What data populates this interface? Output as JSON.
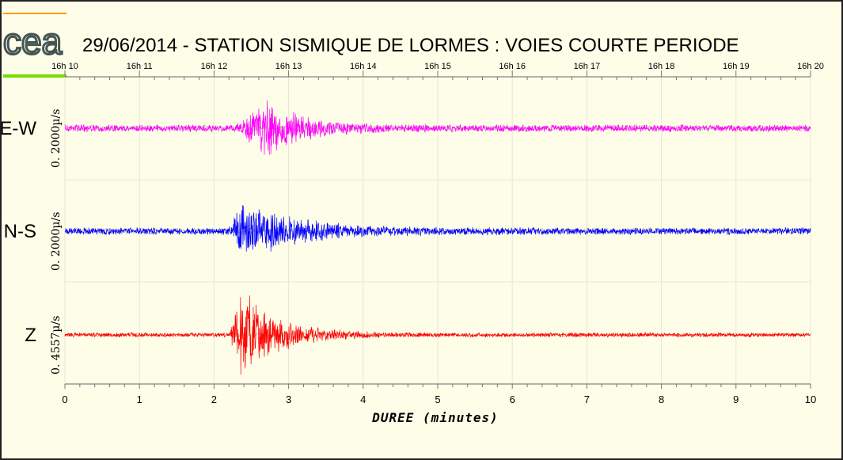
{
  "chart_data": {
    "type": "line",
    "title": "29/06/2014  -  STATION SISMIQUE DE LORMES : VOIES COURTE PERIODE",
    "xlabel": "DUREE (minutes)",
    "xlim": [
      0,
      10
    ],
    "x_ticks": [
      "0",
      "1",
      "2",
      "3",
      "4",
      "5",
      "6",
      "7",
      "8",
      "9",
      "10"
    ],
    "time_ticks": [
      "16h 10",
      "16h 11",
      "16h 12",
      "16h 13",
      "16h 14",
      "16h 15",
      "16h 16",
      "16h 17",
      "16h 18",
      "16h 19",
      "16h 20"
    ],
    "grid": true,
    "series": [
      {
        "name": "E-W",
        "scale": "0. 2000µ/s",
        "color": "#ff00ff",
        "onset_minutes": 2.3,
        "peak_minutes": 2.7,
        "decay_end_minutes": 4.2
      },
      {
        "name": "N-S",
        "scale": "0. 2000µ/s",
        "color": "#0000ff",
        "onset_minutes": 2.2,
        "peak_minutes": 2.4,
        "decay_end_minutes": 4.5
      },
      {
        "name": "Z",
        "scale": "0. 4557µ/s",
        "color": "#ff0000",
        "onset_minutes": 2.2,
        "peak_minutes": 2.35,
        "decay_end_minutes": 3.8
      }
    ]
  },
  "logo": {
    "text": "cea",
    "bar_top_color": "#ff9900",
    "bar_bottom_color": "#77dd00"
  }
}
